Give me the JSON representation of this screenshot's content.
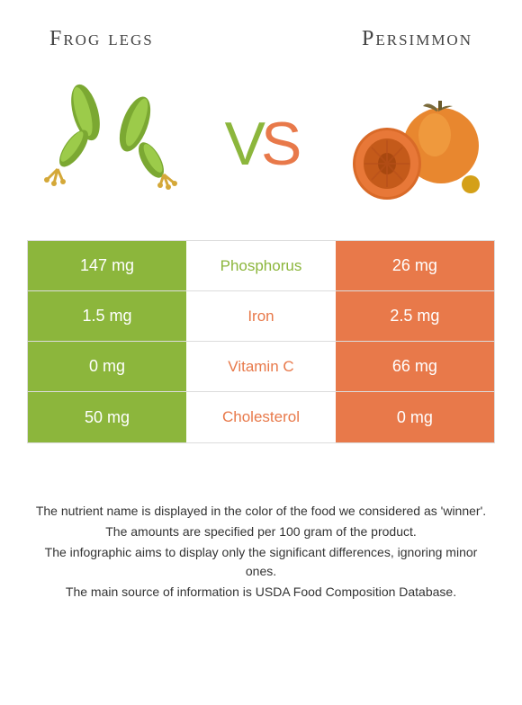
{
  "food_left": {
    "title": "Frog legs",
    "color": "#8cb63c"
  },
  "food_right": {
    "title": "Persimmon",
    "color": "#e8794a"
  },
  "vs": {
    "v": "V",
    "s": "S"
  },
  "colors": {
    "left": "#8cb63c",
    "right": "#e8794a",
    "border": "#dcdcdc",
    "text": "#444444",
    "white": "#ffffff"
  },
  "rows": [
    {
      "nutrient": "Phosphorus",
      "left": "147 mg",
      "right": "26 mg",
      "winner": "left"
    },
    {
      "nutrient": "Iron",
      "left": "1.5 mg",
      "right": "2.5 mg",
      "winner": "right"
    },
    {
      "nutrient": "Vitamin C",
      "left": "0 mg",
      "right": "66 mg",
      "winner": "right"
    },
    {
      "nutrient": "Cholesterol",
      "left": "50 mg",
      "right": "0 mg",
      "winner": "right"
    }
  ],
  "footer": {
    "line1": "The nutrient name is displayed in the color of the food we considered as 'winner'.",
    "line2": "The amounts are specified per 100 gram of the product.",
    "line3": "The infographic aims to display only the significant differences, ignoring minor ones.",
    "line4": "The main source of information is USDA Food Composition Database."
  }
}
